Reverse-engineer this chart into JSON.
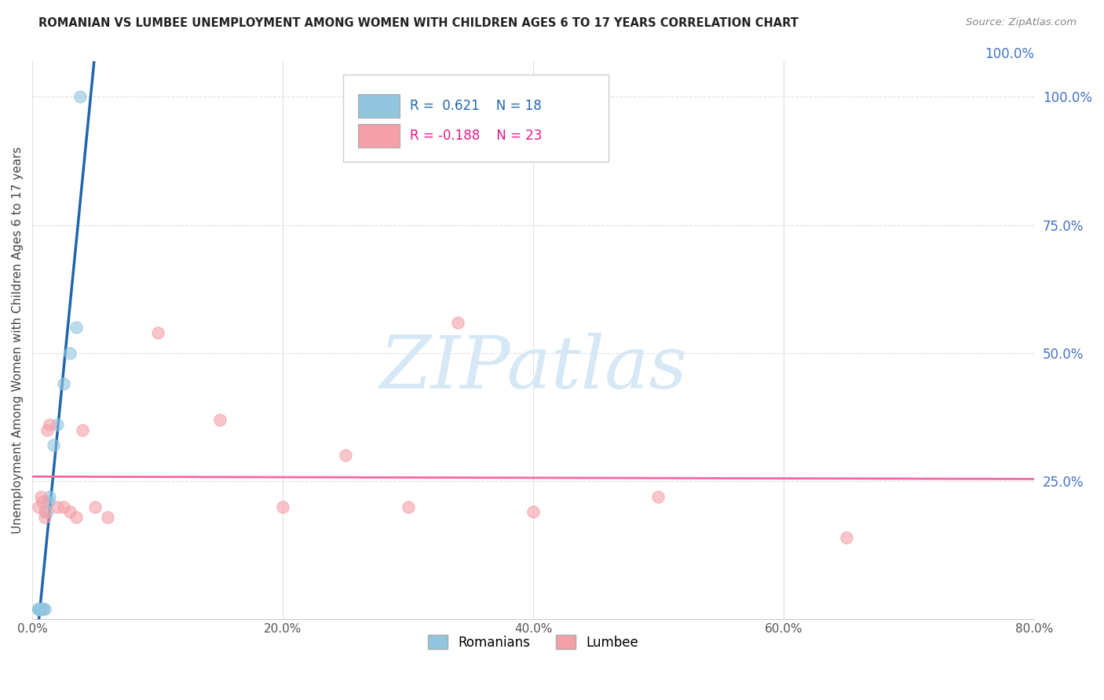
{
  "title": "ROMANIAN VS LUMBEE UNEMPLOYMENT AMONG WOMEN WITH CHILDREN AGES 6 TO 17 YEARS CORRELATION CHART",
  "source": "Source: ZipAtlas.com",
  "ylabel": "Unemployment Among Women with Children Ages 6 to 17 years",
  "xlim": [
    0.0,
    0.8
  ],
  "ylim": [
    -0.02,
    1.07
  ],
  "x_ticks": [
    0.0,
    0.2,
    0.4,
    0.6,
    0.8
  ],
  "x_tick_labels": [
    "0.0%",
    "20.0%",
    "40.0%",
    "60.0%",
    "80.0%"
  ],
  "y_ticks_right": [
    0.25,
    0.5,
    0.75,
    1.0
  ],
  "y_tick_labels_right": [
    "25.0%",
    "50.0%",
    "75.0%",
    "100.0%"
  ],
  "romanian_R": 0.621,
  "romanian_N": 18,
  "lumbee_R": -0.188,
  "lumbee_N": 23,
  "romanian_color": "#92c5de",
  "lumbee_color": "#f4a0a8",
  "romanian_line_color": "#2166ac",
  "lumbee_line_color": "#f768a1",
  "watermark_color": "#d6e8f5",
  "legend_box_color": "#f5f5f5",
  "legend_border_color": "#cccccc",
  "grid_color": "#e0e0e0",
  "romanian_points": [
    [
      0.005,
      0.0
    ],
    [
      0.005,
      0.0
    ],
    [
      0.005,
      0.0
    ],
    [
      0.005,
      0.0
    ],
    [
      0.005,
      0.0
    ],
    [
      0.007,
      0.0
    ],
    [
      0.008,
      0.0
    ],
    [
      0.009,
      0.0
    ],
    [
      0.01,
      0.0
    ],
    [
      0.012,
      0.19
    ],
    [
      0.013,
      0.21
    ],
    [
      0.014,
      0.22
    ],
    [
      0.017,
      0.32
    ],
    [
      0.02,
      0.36
    ],
    [
      0.025,
      0.44
    ],
    [
      0.03,
      0.5
    ],
    [
      0.035,
      0.55
    ],
    [
      0.038,
      1.0
    ]
  ],
  "lumbee_points": [
    [
      0.005,
      0.2
    ],
    [
      0.007,
      0.22
    ],
    [
      0.008,
      0.21
    ],
    [
      0.01,
      0.19
    ],
    [
      0.01,
      0.18
    ],
    [
      0.012,
      0.35
    ],
    [
      0.014,
      0.36
    ],
    [
      0.02,
      0.2
    ],
    [
      0.025,
      0.2
    ],
    [
      0.03,
      0.19
    ],
    [
      0.035,
      0.18
    ],
    [
      0.04,
      0.35
    ],
    [
      0.05,
      0.2
    ],
    [
      0.06,
      0.18
    ],
    [
      0.1,
      0.54
    ],
    [
      0.15,
      0.37
    ],
    [
      0.2,
      0.2
    ],
    [
      0.25,
      0.3
    ],
    [
      0.3,
      0.2
    ],
    [
      0.34,
      0.56
    ],
    [
      0.4,
      0.19
    ],
    [
      0.5,
      0.22
    ],
    [
      0.65,
      0.14
    ]
  ]
}
